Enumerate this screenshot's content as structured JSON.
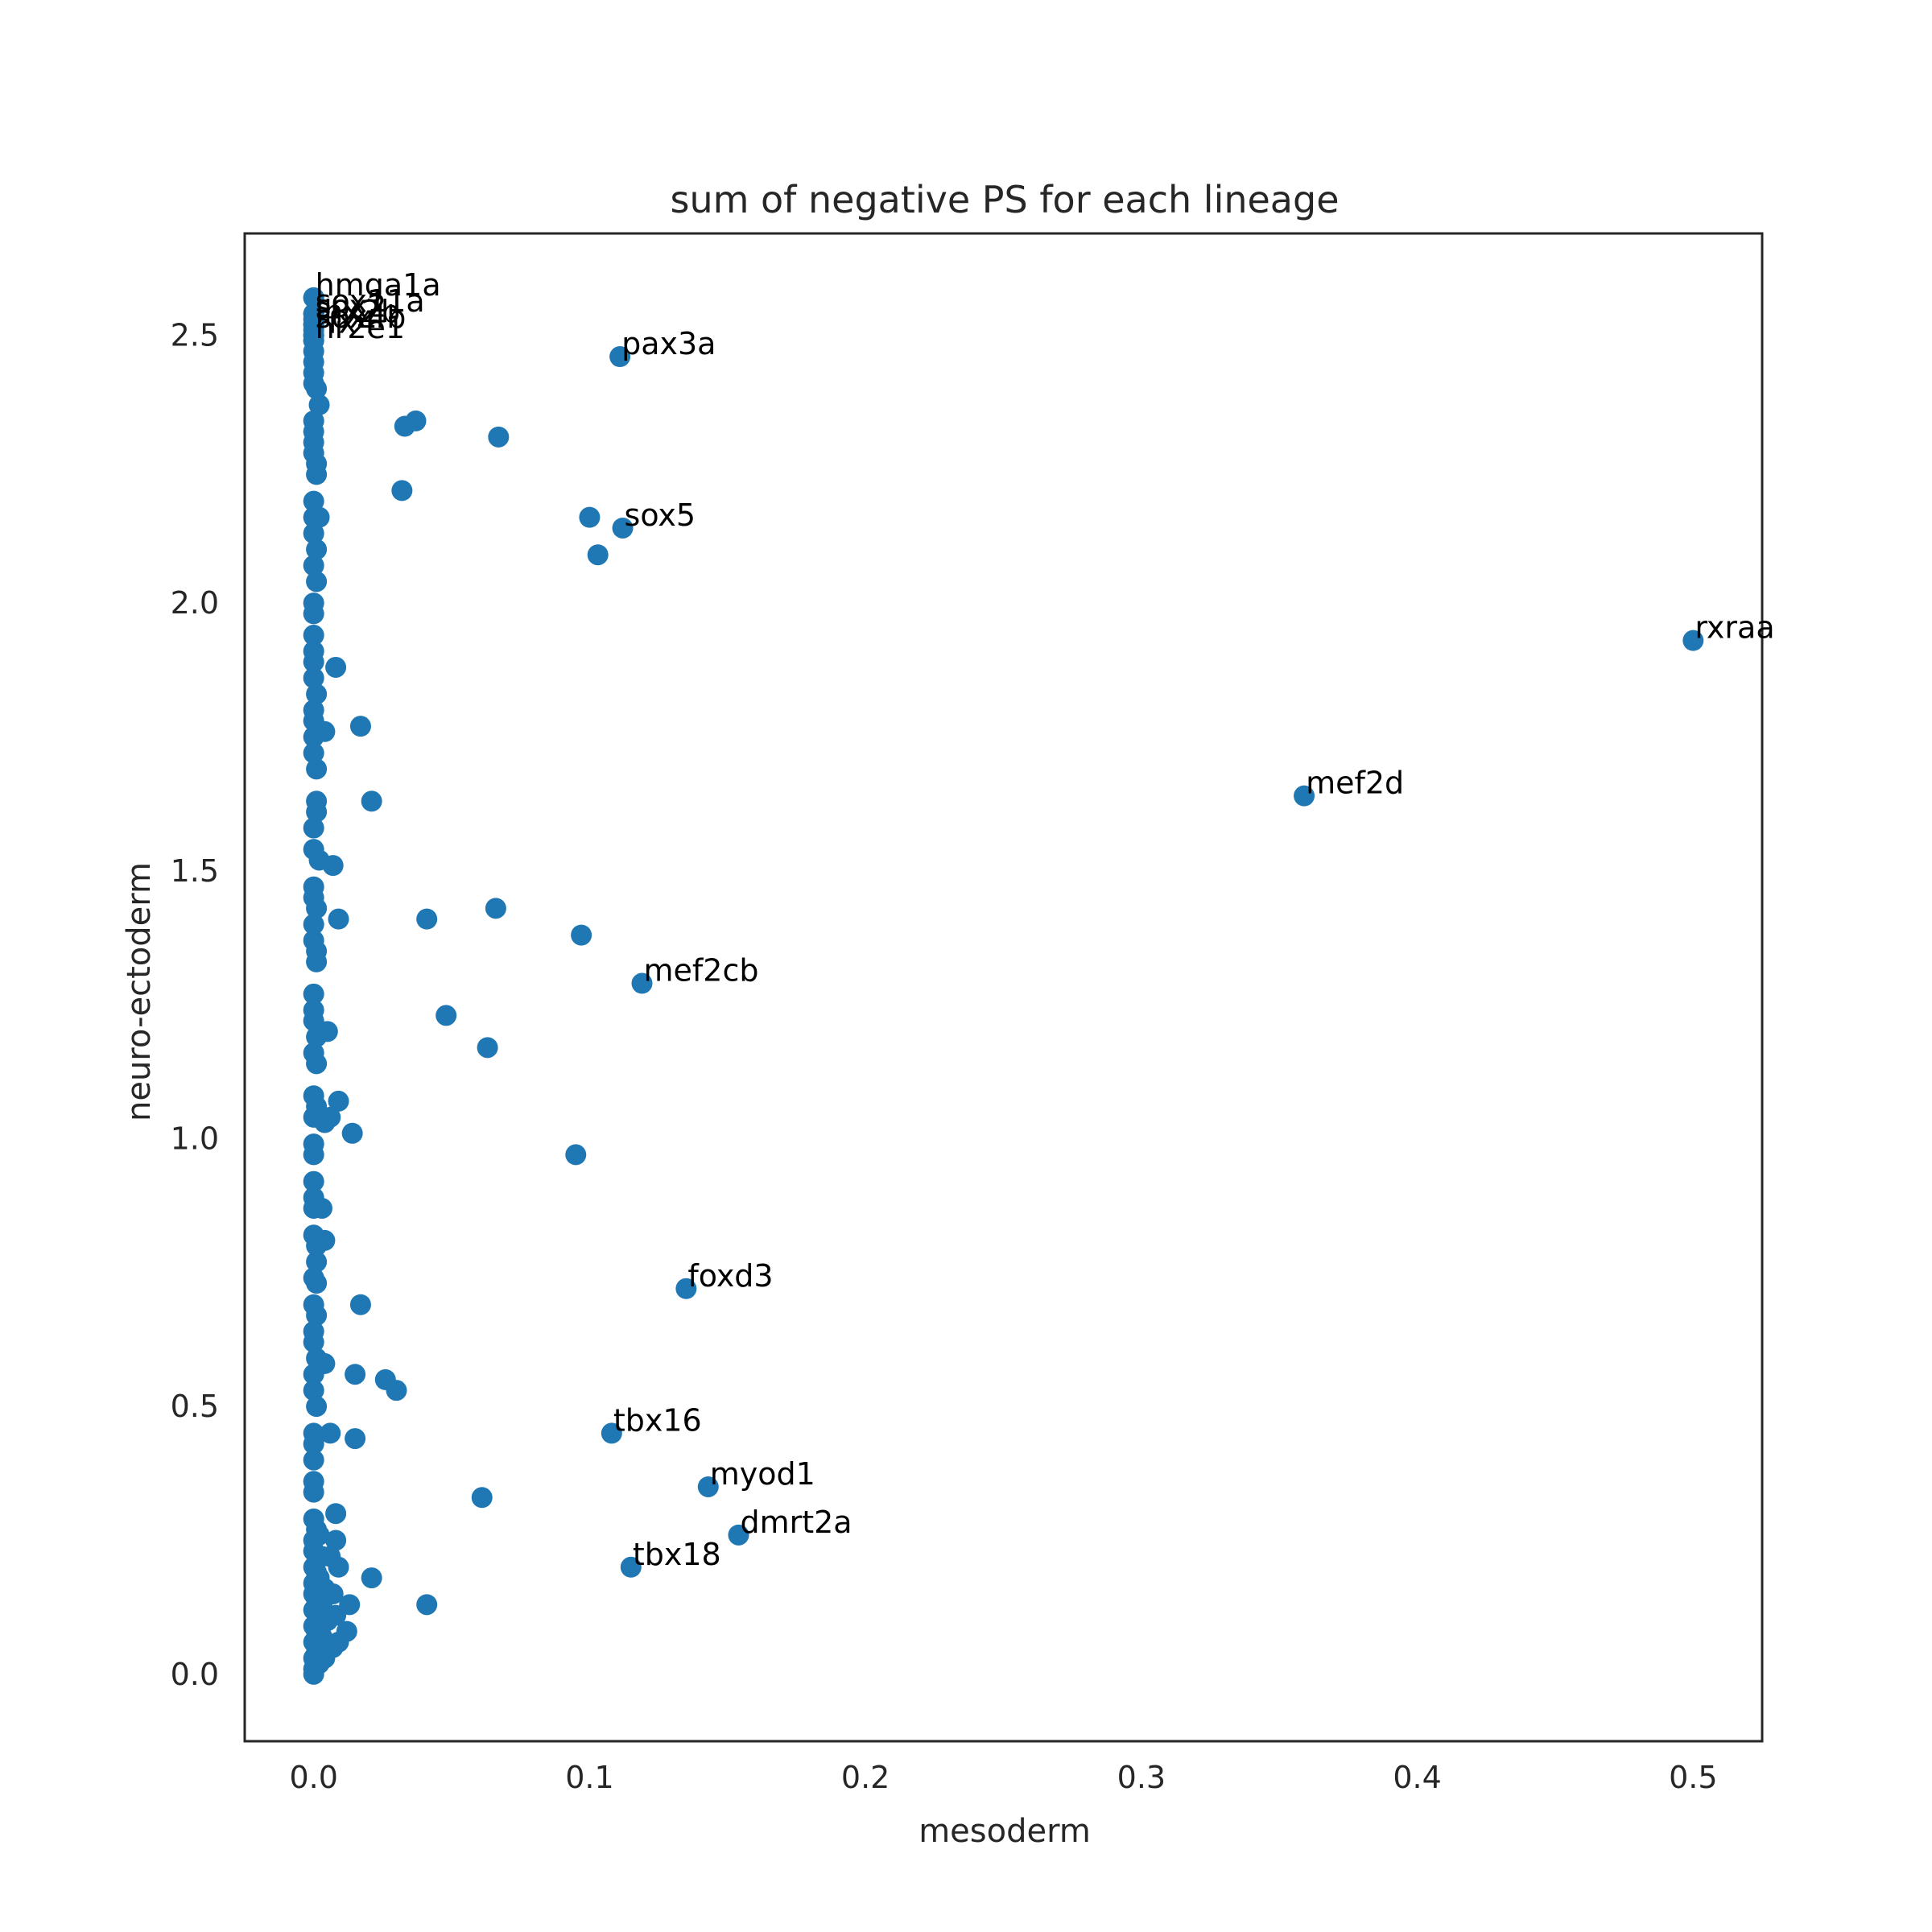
{
  "chart_data": {
    "type": "scatter",
    "title": "sum of negative PS for each lineage",
    "xlabel": "mesoderm",
    "ylabel": "neuro-ectoderm",
    "xlim": [
      -0.025,
      0.525
    ],
    "ylim": [
      -0.125,
      2.69
    ],
    "xticks": [
      0.0,
      0.1,
      0.2,
      0.3,
      0.4,
      0.5
    ],
    "xtick_labels": [
      "0.0",
      "0.1",
      "0.2",
      "0.3",
      "0.4",
      "0.5"
    ],
    "yticks": [
      0.0,
      0.5,
      1.0,
      1.5,
      2.0,
      2.5
    ],
    "ytick_labels": [
      "0.0",
      "0.5",
      "1.0",
      "1.5",
      "2.0",
      "2.5"
    ],
    "grid": false,
    "legend": "none",
    "point_color": "#1f77b4",
    "frame_color": "#262626",
    "points": [
      [
        0.0,
        2.57
      ],
      [
        0.0,
        2.54
      ],
      [
        0.0,
        2.52
      ],
      [
        0.0,
        2.5
      ],
      [
        0.0,
        2.49
      ],
      [
        0.0,
        2.47
      ],
      [
        0.0,
        2.45
      ],
      [
        0.0,
        2.43
      ],
      [
        0.0,
        2.41
      ],
      [
        0.001,
        2.4
      ],
      [
        0.002,
        2.37
      ],
      [
        0.0,
        2.34
      ],
      [
        0.0,
        2.32
      ],
      [
        0.0,
        2.3
      ],
      [
        0.0,
        2.28
      ],
      [
        0.001,
        2.26
      ],
      [
        0.001,
        2.24
      ],
      [
        0.0,
        2.19
      ],
      [
        0.0,
        2.16
      ],
      [
        0.002,
        2.16
      ],
      [
        0.0,
        2.13
      ],
      [
        0.001,
        2.1
      ],
      [
        0.0,
        2.07
      ],
      [
        0.001,
        2.04
      ],
      [
        0.0,
        2.0
      ],
      [
        0.0,
        1.98
      ],
      [
        0.0,
        1.94
      ],
      [
        0.0,
        1.91
      ],
      [
        0.0,
        1.89
      ],
      [
        0.0,
        1.86
      ],
      [
        0.001,
        1.83
      ],
      [
        0.0,
        1.8
      ],
      [
        0.0,
        1.78
      ],
      [
        0.0,
        1.75
      ],
      [
        0.0,
        1.72
      ],
      [
        0.001,
        1.69
      ],
      [
        0.001,
        1.63
      ],
      [
        0.001,
        1.61
      ],
      [
        0.0,
        1.58
      ],
      [
        0.0,
        1.54
      ],
      [
        0.002,
        1.52
      ],
      [
        0.0,
        1.47
      ],
      [
        0.0,
        1.45
      ],
      [
        0.001,
        1.43
      ],
      [
        0.0,
        1.4
      ],
      [
        0.0,
        1.37
      ],
      [
        0.001,
        1.35
      ],
      [
        0.001,
        1.33
      ],
      [
        0.0,
        1.27
      ],
      [
        0.0,
        1.24
      ],
      [
        0.0,
        1.22
      ],
      [
        0.001,
        1.19
      ],
      [
        0.0,
        1.16
      ],
      [
        0.001,
        1.14
      ],
      [
        0.0,
        1.08
      ],
      [
        0.001,
        1.06
      ],
      [
        0.0,
        1.04
      ],
      [
        0.0,
        0.99
      ],
      [
        0.0,
        0.97
      ],
      [
        0.0,
        0.92
      ],
      [
        0.0,
        0.89
      ],
      [
        0.0,
        0.87
      ],
      [
        0.003,
        0.87
      ],
      [
        0.0,
        0.82
      ],
      [
        0.001,
        0.8
      ],
      [
        0.001,
        0.77
      ],
      [
        0.0,
        0.74
      ],
      [
        0.001,
        0.73
      ],
      [
        0.0,
        0.69
      ],
      [
        0.001,
        0.67
      ],
      [
        0.0,
        0.64
      ],
      [
        0.0,
        0.62
      ],
      [
        0.001,
        0.59
      ],
      [
        0.0,
        0.56
      ],
      [
        0.0,
        0.53
      ],
      [
        0.001,
        0.5
      ],
      [
        0.0,
        0.45
      ],
      [
        0.0,
        0.43
      ],
      [
        0.0,
        0.4
      ],
      [
        0.0,
        0.36
      ],
      [
        0.0,
        0.34
      ],
      [
        0.0,
        0.29
      ],
      [
        0.001,
        0.27
      ],
      [
        0.002,
        0.26
      ],
      [
        0.0,
        0.25
      ],
      [
        0.0,
        0.23
      ],
      [
        0.003,
        0.22
      ],
      [
        0.0,
        0.2
      ],
      [
        0.001,
        0.19
      ],
      [
        0.002,
        0.18
      ],
      [
        0.0,
        0.17
      ],
      [
        0.004,
        0.16
      ],
      [
        0.0,
        0.15
      ],
      [
        0.001,
        0.14
      ],
      [
        0.003,
        0.13
      ],
      [
        0.0,
        0.12
      ],
      [
        0.002,
        0.11
      ],
      [
        0.005,
        0.1
      ],
      [
        0.0,
        0.09
      ],
      [
        0.001,
        0.08
      ],
      [
        0.003,
        0.07
      ],
      [
        0.0,
        0.06
      ],
      [
        0.002,
        0.05
      ],
      [
        0.001,
        0.04
      ],
      [
        0.0,
        0.03
      ],
      [
        0.002,
        0.02
      ],
      [
        0.0,
        0.01
      ],
      [
        0.0,
        0.0
      ],
      [
        0.008,
        1.88
      ],
      [
        0.004,
        1.76
      ],
      [
        0.017,
        1.77
      ],
      [
        0.021,
        1.63
      ],
      [
        0.007,
        1.51
      ],
      [
        0.009,
        1.41
      ],
      [
        0.005,
        1.2
      ],
      [
        0.009,
        1.07
      ],
      [
        0.006,
        1.04
      ],
      [
        0.004,
        1.03
      ],
      [
        0.014,
        1.01
      ],
      [
        0.004,
        0.81
      ],
      [
        0.017,
        0.69
      ],
      [
        0.004,
        0.58
      ],
      [
        0.015,
        0.56
      ],
      [
        0.026,
        0.55
      ],
      [
        0.03,
        0.53
      ],
      [
        0.006,
        0.45
      ],
      [
        0.015,
        0.44
      ],
      [
        0.008,
        0.3
      ],
      [
        0.008,
        0.25
      ],
      [
        0.006,
        0.22
      ],
      [
        0.009,
        0.2
      ],
      [
        0.021,
        0.18
      ],
      [
        0.007,
        0.15
      ],
      [
        0.013,
        0.13
      ],
      [
        0.008,
        0.11
      ],
      [
        0.012,
        0.08
      ],
      [
        0.009,
        0.06
      ],
      [
        0.007,
        0.05
      ],
      [
        0.004,
        0.03
      ],
      [
        0.033,
        2.33
      ],
      [
        0.037,
        2.34
      ],
      [
        0.067,
        2.31
      ],
      [
        0.032,
        2.21
      ],
      [
        0.1,
        2.16
      ],
      [
        0.103,
        2.09
      ],
      [
        0.041,
        1.41
      ],
      [
        0.066,
        1.43
      ],
      [
        0.097,
        1.38
      ],
      [
        0.048,
        1.23
      ],
      [
        0.063,
        1.17
      ],
      [
        0.095,
        0.97
      ],
      [
        0.061,
        0.33
      ],
      [
        0.041,
        0.13
      ]
    ],
    "labeled_points": [
      {
        "label": "hmga1a",
        "x": 0.0,
        "y": 2.57
      },
      {
        "label": "sox11a",
        "x": 0.0,
        "y": 2.54
      },
      {
        "label": "sox2",
        "x": 0.0,
        "y": 2.53
      },
      {
        "label": "lhx2b",
        "x": 0.0,
        "y": 2.52
      },
      {
        "label": "sox4b",
        "x": 0.0,
        "y": 2.51
      },
      {
        "label": "rfx4",
        "x": 0.0,
        "y": 2.5
      },
      {
        "label": "nr2e1",
        "x": 0.0,
        "y": 2.49
      },
      {
        "label": "pax3a",
        "x": 0.111,
        "y": 2.46
      },
      {
        "label": "sox5",
        "x": 0.112,
        "y": 2.14
      },
      {
        "label": "rxraa",
        "x": 0.5,
        "y": 1.93
      },
      {
        "label": "mef2d",
        "x": 0.359,
        "y": 1.64
      },
      {
        "label": "mef2cb",
        "x": 0.119,
        "y": 1.29
      },
      {
        "label": "foxd3",
        "x": 0.135,
        "y": 0.72
      },
      {
        "label": "tbx16",
        "x": 0.108,
        "y": 0.45
      },
      {
        "label": "myod1",
        "x": 0.143,
        "y": 0.35
      },
      {
        "label": "dmrt2a",
        "x": 0.154,
        "y": 0.26
      },
      {
        "label": "tbx18",
        "x": 0.115,
        "y": 0.2
      }
    ]
  }
}
